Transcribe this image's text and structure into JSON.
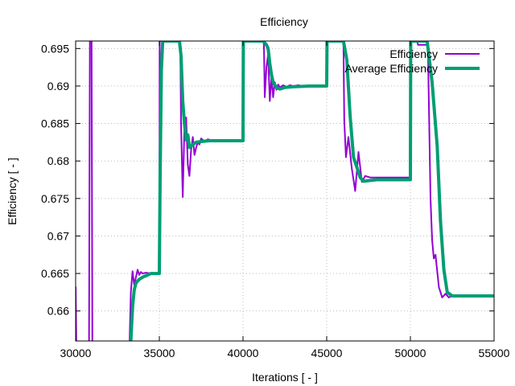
{
  "chart_data": {
    "type": "line",
    "title": "Efficiency",
    "xlabel": "Iterations [ - ]",
    "ylabel": "Efficiency [ - ]",
    "xlim": [
      30000,
      55000
    ],
    "ylim": [
      0.656,
      0.696
    ],
    "xticks": [
      30000,
      35000,
      40000,
      45000,
      50000,
      55000
    ],
    "xtick_labels": [
      "30000",
      "35000",
      "40000",
      "45000",
      "50000",
      "55000"
    ],
    "yticks": [
      0.66,
      0.665,
      0.67,
      0.675,
      0.68,
      0.685,
      0.69,
      0.695
    ],
    "ytick_labels": [
      "0.66",
      "0.665",
      "0.67",
      "0.675",
      "0.68",
      "0.685",
      "0.69",
      "0.695"
    ],
    "grid": true,
    "legend_position": "top-right",
    "series": [
      {
        "name": "Efficiency",
        "color": "#9400d3",
        "x": [
          30000,
          30050,
          30800,
          30850,
          30900,
          30950,
          31000,
          33200,
          33300,
          33400,
          33500,
          33600,
          33700,
          33800,
          33900,
          34000,
          34200,
          34500,
          34800,
          35000,
          35020,
          35100,
          35150,
          36250,
          36300,
          36400,
          36500,
          36600,
          36700,
          36800,
          36900,
          37000,
          37100,
          37200,
          37300,
          37400,
          37500,
          37700,
          37900,
          38200,
          38600,
          39000,
          39500,
          40000,
          40020,
          40100,
          41200,
          41250,
          41300,
          41400,
          41500,
          41600,
          41700,
          41800,
          41900,
          42000,
          42100,
          42200,
          42400,
          42600,
          42800,
          43000,
          43300,
          43600,
          44000,
          44500,
          45000,
          45020,
          45100,
          46000,
          46050,
          46150,
          46300,
          46500,
          46700,
          46900,
          47100,
          47300,
          47600,
          48000,
          48500,
          49000,
          49500,
          49900,
          50000,
          50020,
          50100,
          50400,
          50450,
          51000,
          51050,
          51200,
          51300,
          51400,
          51500,
          51700,
          51900,
          52100,
          52300,
          52500,
          52700,
          53000,
          54000,
          55000
        ],
        "y": [
          0.6632,
          0.654,
          0.654,
          0.696,
          0.696,
          0.696,
          0.654,
          0.654,
          0.6625,
          0.6653,
          0.6635,
          0.6645,
          0.6655,
          0.6648,
          0.6652,
          0.665,
          0.6651,
          0.665,
          0.665,
          0.665,
          0.696,
          0.696,
          0.696,
          0.696,
          0.685,
          0.6752,
          0.6845,
          0.6858,
          0.6795,
          0.678,
          0.6815,
          0.6832,
          0.6808,
          0.6818,
          0.6825,
          0.6822,
          0.683,
          0.6826,
          0.6829,
          0.6827,
          0.6828,
          0.6827,
          0.6827,
          0.6827,
          0.696,
          0.696,
          0.696,
          0.6955,
          0.6885,
          0.6925,
          0.6942,
          0.688,
          0.6912,
          0.6885,
          0.6905,
          0.6895,
          0.6902,
          0.6898,
          0.6901,
          0.6899,
          0.6901,
          0.69,
          0.6901,
          0.69,
          0.6901,
          0.6901,
          0.6901,
          0.696,
          0.696,
          0.696,
          0.6855,
          0.6805,
          0.6832,
          0.679,
          0.676,
          0.6812,
          0.6772,
          0.678,
          0.6778,
          0.6778,
          0.6778,
          0.6778,
          0.6778,
          0.6778,
          0.6778,
          0.696,
          0.696,
          0.696,
          0.6955,
          0.6955,
          0.695,
          0.675,
          0.6695,
          0.667,
          0.6675,
          0.6632,
          0.6618,
          0.6623,
          0.6618,
          0.662,
          0.6619,
          0.6619,
          0.6619,
          0.6619
        ]
      },
      {
        "name": "Average Efficiency",
        "color": "#009e73",
        "x": [
          33300,
          33400,
          33500,
          33600,
          33700,
          33800,
          34000,
          34200,
          34500,
          35000,
          35050,
          35120,
          35200,
          36000,
          36200,
          36300,
          36400,
          36500,
          36600,
          36700,
          36800,
          37000,
          37200,
          37500,
          38000,
          39000,
          40000,
          40020,
          40100,
          41200,
          41400,
          41500,
          41600,
          41700,
          41800,
          42000,
          42200,
          42500,
          43000,
          44000,
          45000,
          45020,
          45100,
          46000,
          46200,
          46400,
          46600,
          46800,
          47000,
          47200,
          47600,
          48000,
          49000,
          50000,
          50020,
          50100,
          51000,
          51300,
          51600,
          51800,
          52000,
          52200,
          52500,
          53000,
          54000,
          55000
        ],
        "y": [
          0.656,
          0.6605,
          0.6628,
          0.6637,
          0.664,
          0.6642,
          0.6645,
          0.6647,
          0.665,
          0.665,
          0.678,
          0.692,
          0.696,
          0.696,
          0.696,
          0.694,
          0.688,
          0.685,
          0.6828,
          0.6835,
          0.6818,
          0.6822,
          0.6825,
          0.6826,
          0.6827,
          0.6827,
          0.6827,
          0.696,
          0.696,
          0.696,
          0.6955,
          0.695,
          0.693,
          0.6915,
          0.6905,
          0.6898,
          0.6896,
          0.6898,
          0.6899,
          0.69,
          0.69,
          0.696,
          0.696,
          0.696,
          0.6935,
          0.686,
          0.6805,
          0.6792,
          0.6778,
          0.6773,
          0.6774,
          0.6775,
          0.6775,
          0.6775,
          0.696,
          0.696,
          0.696,
          0.6905,
          0.682,
          0.672,
          0.6655,
          0.6625,
          0.662,
          0.662,
          0.662,
          0.662
        ]
      }
    ]
  }
}
